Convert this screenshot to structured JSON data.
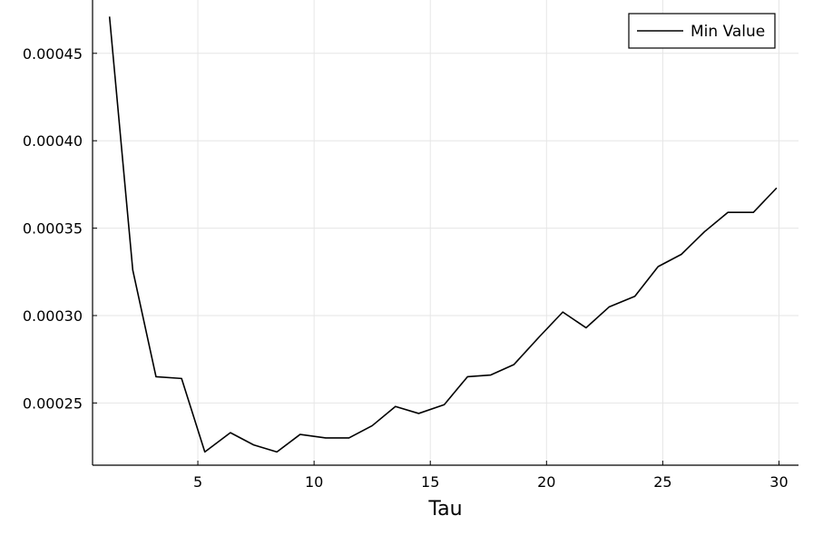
{
  "chart_data": {
    "type": "line",
    "xlabel": "Tau",
    "ylabel": "",
    "title": "",
    "xlim": [
      0.47,
      30.84
    ],
    "ylim": [
      0.0002144,
      0.0004805
    ],
    "x_ticks": [
      5,
      10,
      15,
      20,
      25,
      30
    ],
    "x_tick_labels": [
      "5",
      "10",
      "15",
      "20",
      "25",
      "30"
    ],
    "y_ticks": [
      0.00025,
      0.0003,
      0.00035,
      0.0004,
      0.00045
    ],
    "y_tick_labels": [
      "0.00025",
      "0.00030",
      "0.00035",
      "0.00040",
      "0.00045"
    ],
    "grid": true,
    "legend_position": "top-right",
    "series": [
      {
        "name": "Min Value",
        "color": "#000000",
        "x": [
          1.2,
          2.2,
          3.2,
          4.3,
          5.3,
          6.4,
          7.4,
          8.4,
          9.4,
          10.5,
          11.5,
          12.5,
          13.5,
          14.5,
          15.6,
          16.6,
          17.6,
          18.6,
          19.7,
          20.7,
          21.7,
          22.7,
          23.8,
          24.8,
          25.8,
          26.8,
          27.8,
          28.9,
          29.9
        ],
        "y": [
          0.000471,
          0.000326,
          0.000265,
          0.000264,
          0.000222,
          0.000233,
          0.000226,
          0.000222,
          0.000232,
          0.00023,
          0.00023,
          0.000237,
          0.000248,
          0.000244,
          0.000249,
          0.000265,
          0.000266,
          0.000272,
          0.000288,
          0.000302,
          0.000293,
          0.000305,
          0.000311,
          0.000328,
          0.000335,
          0.000348,
          0.000359,
          0.000359,
          0.000373
        ]
      }
    ]
  }
}
